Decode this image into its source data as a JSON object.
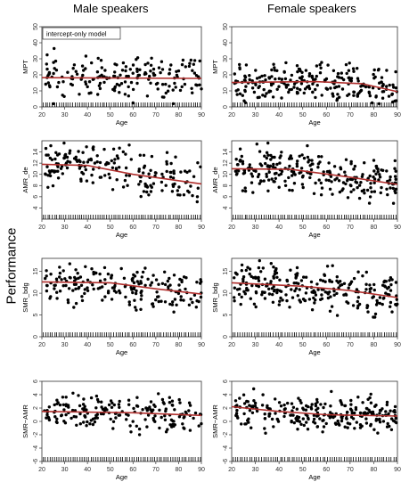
{
  "figure": {
    "column_titles": [
      "Male speakers",
      "Female speakers"
    ],
    "ylabel": "Performance",
    "legend": "intercept-only model",
    "colors": {
      "points": "#000000",
      "fit": "#b0302e",
      "axis": "#333333"
    }
  },
  "chart_data": [
    {
      "type": "scatter",
      "panel": "MPT male",
      "xlabel": "Age",
      "ylabel": "MPT",
      "xlim": [
        20,
        90
      ],
      "ylim": [
        0,
        50
      ],
      "xticks": [
        20,
        30,
        40,
        50,
        60,
        70,
        80,
        90
      ],
      "yticks": [
        0,
        10,
        20,
        30,
        40,
        50
      ],
      "fit": [
        {
          "x": 20,
          "y": 18.2
        },
        {
          "x": 90,
          "y": 17.8
        }
      ],
      "seed": 11,
      "n": 180,
      "center_y": 18,
      "spread_y": 8,
      "rug_count": 70
    },
    {
      "type": "scatter",
      "panel": "MPT female",
      "xlabel": "Age",
      "ylabel": "MPT",
      "xlim": [
        20,
        90
      ],
      "ylim": [
        0,
        50
      ],
      "xticks": [
        20,
        30,
        40,
        50,
        60,
        70,
        80,
        90
      ],
      "yticks": [
        0,
        10,
        20,
        30,
        40,
        50
      ],
      "fit": [
        {
          "x": 20,
          "y": 15.2
        },
        {
          "x": 55,
          "y": 15.8
        },
        {
          "x": 75,
          "y": 14.5
        },
        {
          "x": 90,
          "y": 9.5
        }
      ],
      "seed": 23,
      "n": 240,
      "center_y": 15,
      "spread_y": 7,
      "rug_count": 70
    },
    {
      "type": "scatter",
      "panel": "AMR male",
      "xlabel": "Age",
      "ylabel": "AMR_de",
      "xlim": [
        20,
        90
      ],
      "ylim": [
        2,
        16
      ],
      "xticks": [
        20,
        30,
        40,
        50,
        60,
        70,
        80,
        90
      ],
      "yticks": [
        4,
        6,
        8,
        10,
        12,
        14
      ],
      "fit": [
        {
          "x": 20,
          "y": 11.8
        },
        {
          "x": 40,
          "y": 11.6
        },
        {
          "x": 60,
          "y": 10.0
        },
        {
          "x": 90,
          "y": 8.3
        }
      ],
      "seed": 37,
      "n": 190,
      "center_y": 10.5,
      "spread_y": 2.3,
      "rug_count": 70
    },
    {
      "type": "scatter",
      "panel": "AMR female",
      "xlabel": "Age",
      "ylabel": "AMR_de",
      "xlim": [
        20,
        90
      ],
      "ylim": [
        2,
        16
      ],
      "xticks": [
        20,
        30,
        40,
        50,
        60,
        70,
        80,
        90
      ],
      "yticks": [
        4,
        6,
        8,
        10,
        12,
        14
      ],
      "fit": [
        {
          "x": 20,
          "y": 11.0
        },
        {
          "x": 45,
          "y": 10.9
        },
        {
          "x": 70,
          "y": 9.5
        },
        {
          "x": 90,
          "y": 8.2
        }
      ],
      "seed": 41,
      "n": 250,
      "center_y": 10.2,
      "spread_y": 2.3,
      "rug_count": 70
    },
    {
      "type": "scatter",
      "panel": "SMR male",
      "xlabel": "Age",
      "ylabel": "SMR_bdg",
      "xlim": [
        20,
        90
      ],
      "ylim": [
        0,
        18
      ],
      "xticks": [
        20,
        30,
        40,
        50,
        60,
        70,
        80,
        90
      ],
      "yticks": [
        0,
        5,
        10,
        15
      ],
      "fit": [
        {
          "x": 20,
          "y": 12.6
        },
        {
          "x": 50,
          "y": 12.4
        },
        {
          "x": 70,
          "y": 11.0
        },
        {
          "x": 90,
          "y": 9.8
        }
      ],
      "seed": 53,
      "n": 190,
      "center_y": 11.8,
      "spread_y": 3.0,
      "rug_count": 70
    },
    {
      "type": "scatter",
      "panel": "SMR female",
      "xlabel": "Age",
      "ylabel": "SMR_bdg",
      "xlim": [
        20,
        90
      ],
      "ylim": [
        0,
        18
      ],
      "xticks": [
        20,
        30,
        40,
        50,
        60,
        70,
        80,
        90
      ],
      "yticks": [
        0,
        5,
        10,
        15
      ],
      "fit": [
        {
          "x": 20,
          "y": 12.4
        },
        {
          "x": 50,
          "y": 11.6
        },
        {
          "x": 70,
          "y": 10.6
        },
        {
          "x": 90,
          "y": 9.0
        }
      ],
      "seed": 67,
      "n": 250,
      "center_y": 11.2,
      "spread_y": 3.0,
      "rug_count": 70
    },
    {
      "type": "scatter",
      "panel": "SMR-AMR male",
      "xlabel": "Age",
      "ylabel": "SMR−AMR",
      "xlim": [
        20,
        90
      ],
      "ylim": [
        -6,
        6
      ],
      "xticks": [
        20,
        30,
        40,
        50,
        60,
        70,
        80,
        90
      ],
      "yticks": [
        -6,
        -4,
        -2,
        0,
        2,
        4,
        6
      ],
      "fit": [
        {
          "x": 20,
          "y": 1.5
        },
        {
          "x": 60,
          "y": 1.3
        },
        {
          "x": 90,
          "y": 0.9
        }
      ],
      "seed": 79,
      "n": 190,
      "center_y": 1.2,
      "spread_y": 1.6,
      "rug_count": 70
    },
    {
      "type": "scatter",
      "panel": "SMR-AMR female",
      "xlabel": "Age",
      "ylabel": "SMR−AMR",
      "xlim": [
        20,
        90
      ],
      "ylim": [
        -6,
        6
      ],
      "xticks": [
        20,
        30,
        40,
        50,
        60,
        70,
        80,
        90
      ],
      "yticks": [
        -6,
        -4,
        -2,
        0,
        2,
        4,
        6
      ],
      "fit": [
        {
          "x": 20,
          "y": 2.2
        },
        {
          "x": 40,
          "y": 1.5
        },
        {
          "x": 60,
          "y": 1.0
        },
        {
          "x": 90,
          "y": 0.8
        }
      ],
      "seed": 83,
      "n": 250,
      "center_y": 1.2,
      "spread_y": 1.6,
      "rug_count": 70
    }
  ]
}
